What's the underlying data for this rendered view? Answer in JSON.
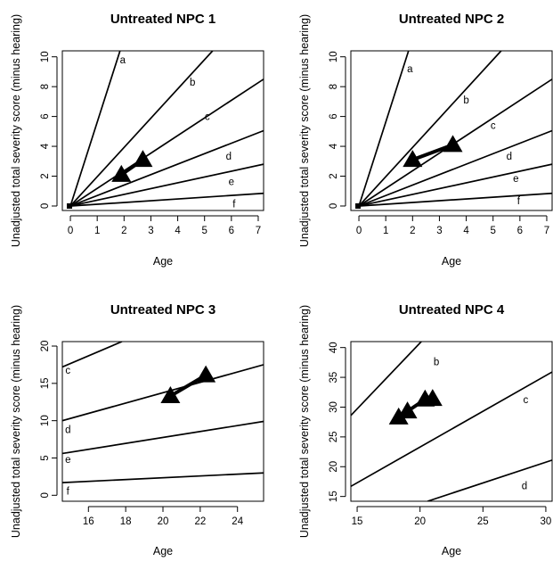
{
  "chart_data": [
    {
      "type": "line",
      "title": "Untreated NPC 1",
      "xlabel": "Age",
      "ylabel": "Unadjusted total severity score (minus hearing)",
      "xlim": [
        -0.3,
        7.2
      ],
      "ylim": [
        -0.3,
        10.4
      ],
      "xticks": [
        0,
        1,
        2,
        3,
        4,
        5,
        6,
        7
      ],
      "yticks": [
        0,
        2,
        4,
        6,
        8,
        10
      ],
      "series": [
        {
          "name": "a",
          "label_at": [
            1.95,
            9.8
          ],
          "points": [
            [
              0,
              0
            ],
            [
              1.85,
              10.4
            ]
          ]
        },
        {
          "name": "b",
          "label_at": [
            4.55,
            8.3
          ],
          "points": [
            [
              0,
              0
            ],
            [
              5.3,
              10.4
            ]
          ]
        },
        {
          "name": "c",
          "label_at": [
            5.1,
            6.0
          ],
          "points": [
            [
              0,
              0
            ],
            [
              7.2,
              8.5
            ]
          ]
        },
        {
          "name": "d",
          "label_at": [
            5.9,
            3.35
          ],
          "points": [
            [
              0,
              0
            ],
            [
              7.2,
              5.05
            ]
          ]
        },
        {
          "name": "e",
          "label_at": [
            6.0,
            1.65
          ],
          "points": [
            [
              0,
              0
            ],
            [
              7.2,
              2.8
            ]
          ]
        },
        {
          "name": "f",
          "label_at": [
            6.1,
            0.15
          ],
          "points": [
            [
              0,
              0
            ],
            [
              7.2,
              0.85
            ]
          ]
        }
      ],
      "observations": [
        [
          1.9,
          2.1
        ],
        [
          2.7,
          3.1
        ]
      ]
    },
    {
      "type": "line",
      "title": "Untreated NPC 2",
      "xlabel": "Age",
      "ylabel": "Unadjusted total severity score (minus hearing)",
      "xlim": [
        -0.3,
        7.2
      ],
      "ylim": [
        -0.3,
        10.4
      ],
      "xticks": [
        0,
        1,
        2,
        3,
        4,
        5,
        6,
        7
      ],
      "yticks": [
        0,
        2,
        4,
        6,
        8,
        10
      ],
      "series": [
        {
          "name": "a",
          "label_at": [
            1.9,
            9.2
          ],
          "points": [
            [
              0,
              0
            ],
            [
              1.85,
              10.4
            ]
          ]
        },
        {
          "name": "b",
          "label_at": [
            4.0,
            7.1
          ],
          "points": [
            [
              0,
              0
            ],
            [
              5.3,
              10.4
            ]
          ]
        },
        {
          "name": "c",
          "label_at": [
            5.0,
            5.4
          ],
          "points": [
            [
              0,
              0
            ],
            [
              7.2,
              8.5
            ]
          ]
        },
        {
          "name": "d",
          "label_at": [
            5.6,
            3.35
          ],
          "points": [
            [
              0,
              0
            ],
            [
              7.2,
              5.05
            ]
          ]
        },
        {
          "name": "e",
          "label_at": [
            5.85,
            1.85
          ],
          "points": [
            [
              0,
              0
            ],
            [
              7.2,
              2.8
            ]
          ]
        },
        {
          "name": "f",
          "label_at": [
            5.95,
            0.35
          ],
          "points": [
            [
              0,
              0
            ],
            [
              7.2,
              0.85
            ]
          ]
        }
      ],
      "observations": [
        [
          2.0,
          3.1
        ],
        [
          3.5,
          4.1
        ]
      ]
    },
    {
      "type": "line",
      "title": "Untreated NPC 3",
      "xlabel": "Age",
      "ylabel": "Unadjusted total severity score (minus hearing)",
      "xlim": [
        14.6,
        25.4
      ],
      "ylim": [
        -0.8,
        20.6
      ],
      "xticks": [
        16,
        18,
        20,
        22,
        24
      ],
      "yticks": [
        0,
        5,
        10,
        15,
        20
      ],
      "series": [
        {
          "name": "c",
          "label_at": [
            14.9,
            16.8
          ],
          "points": [
            [
              14.6,
              17.2
            ],
            [
              17.8,
              20.6
            ]
          ]
        },
        {
          "name": "d",
          "label_at": [
            14.9,
            8.8
          ],
          "points": [
            [
              14.6,
              10.0
            ],
            [
              25.4,
              17.5
            ]
          ]
        },
        {
          "name": "e",
          "label_at": [
            14.9,
            4.8
          ],
          "points": [
            [
              14.6,
              5.6
            ],
            [
              25.4,
              9.9
            ]
          ]
        },
        {
          "name": "f",
          "label_at": [
            14.9,
            0.6
          ],
          "points": [
            [
              14.6,
              1.7
            ],
            [
              25.4,
              3.0
            ]
          ]
        }
      ],
      "observations": [
        [
          20.4,
          13.3
        ],
        [
          22.3,
          16.1
        ]
      ]
    },
    {
      "type": "line",
      "title": "Untreated NPC 4",
      "xlabel": "Age",
      "ylabel": "Unadjusted total severity score (minus hearing)",
      "xlim": [
        14.5,
        30.5
      ],
      "ylim": [
        14.2,
        41.0
      ],
      "xticks": [
        15,
        20,
        25,
        30
      ],
      "yticks": [
        15,
        20,
        25,
        30,
        35,
        40
      ],
      "series": [
        {
          "name": "b",
          "label_at": [
            21.3,
            37.6
          ],
          "points": [
            [
              14.5,
              28.6
            ],
            [
              20.1,
              41.0
            ]
          ]
        },
        {
          "name": "c",
          "label_at": [
            28.4,
            31.3
          ],
          "points": [
            [
              14.5,
              16.7
            ],
            [
              30.5,
              35.9
            ]
          ]
        },
        {
          "name": "d",
          "label_at": [
            28.3,
            16.8
          ],
          "points": [
            [
              20.6,
              14.2
            ],
            [
              30.5,
              21.1
            ]
          ]
        }
      ],
      "observations": [
        [
          18.3,
          28.3
        ],
        [
          19.0,
          29.3
        ],
        [
          20.4,
          31.3
        ],
        [
          21.0,
          31.4
        ]
      ]
    }
  ]
}
